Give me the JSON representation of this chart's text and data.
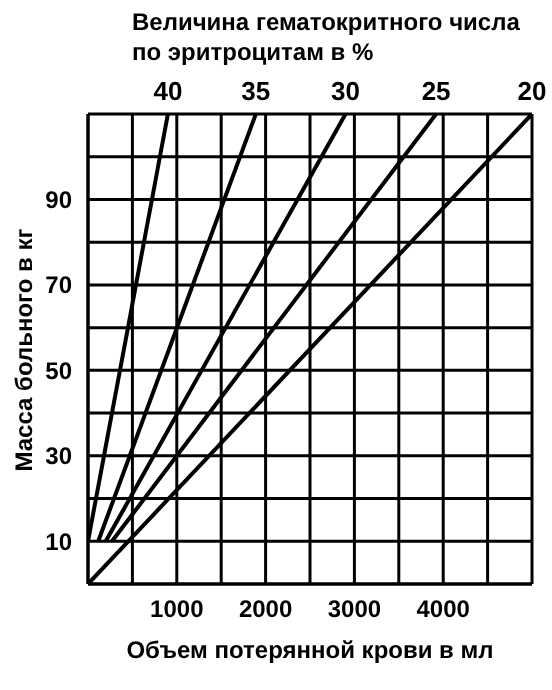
{
  "chart_data": {
    "type": "line",
    "legend_title": "Величина гематокритного числа по эритроцитам в %",
    "xlabel": "Объем потерянной крови в мл",
    "ylabel": "Масса больного в кг",
    "series": [
      {
        "name": "40",
        "color": "#000000",
        "x": [
          0,
          900
        ],
        "values": [
          10,
          110
        ]
      },
      {
        "name": "35",
        "color": "#000000",
        "x": [
          115,
          1890
        ],
        "values": [
          10,
          110
        ]
      },
      {
        "name": "30",
        "color": "#000000",
        "x": [
          200,
          2900
        ],
        "values": [
          10,
          110
        ]
      },
      {
        "name": "25",
        "color": "#000000",
        "x": [
          270,
          3920
        ],
        "values": [
          10,
          110
        ]
      },
      {
        "name": "20",
        "color": "#000000",
        "x": [
          0,
          5000
        ],
        "values": [
          0,
          110
        ]
      }
    ],
    "xlim": [
      0,
      5000
    ],
    "xticks": [
      {
        "value": 0,
        "label": null
      },
      {
        "value": 500,
        "label": null
      },
      1000,
      {
        "value": 1500,
        "label": null
      },
      2000,
      {
        "value": 2500,
        "label": null
      },
      3000,
      {
        "value": 3500,
        "label": null
      },
      4000,
      {
        "value": 4500,
        "label": null
      },
      {
        "value": 5000,
        "label": null
      }
    ],
    "ylim": [
      0,
      110
    ],
    "yticks": [
      {
        "value": 0,
        "label": null
      },
      10,
      {
        "value": 20,
        "label": null
      },
      30,
      {
        "value": 40,
        "label": null
      },
      50,
      {
        "value": 60,
        "label": null
      },
      70,
      {
        "value": 80,
        "label": null
      },
      90,
      {
        "value": 100,
        "label": null
      },
      {
        "value": 110,
        "label": null
      }
    ],
    "grid": true
  }
}
